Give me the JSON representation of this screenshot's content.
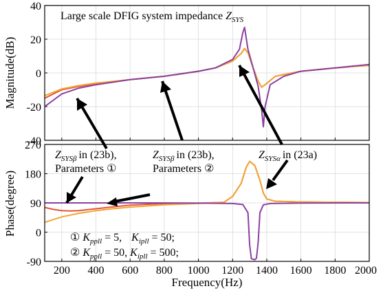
{
  "figure": {
    "title_prefix": "Large scale DFIG system impedance ",
    "title_symbol": "Z",
    "title_subscript": "SYS"
  },
  "chart_data": [
    {
      "type": "line",
      "panel": "magnitude",
      "title": "Large scale DFIG system impedance Z_SYS",
      "xlabel": "",
      "ylabel": "Magnitude(dB)",
      "xlim": [
        100,
        2000
      ],
      "ylim": [
        -40,
        40
      ],
      "yticks": [
        -40,
        -20,
        0,
        20,
        40
      ],
      "grid": true,
      "series": [
        {
          "color": "#e4533a",
          "x": [
            100,
            200,
            300,
            400,
            600,
            800,
            1000,
            1100,
            1200,
            1250,
            1270,
            1290,
            1320,
            1350,
            1370,
            1390,
            1450,
            1600,
            1800,
            2000
          ],
          "y": [
            -15,
            -10,
            -8,
            -6.5,
            -4,
            -2,
            1,
            3,
            7,
            11.5,
            14.5,
            12,
            3,
            -5,
            -8.5,
            -7,
            -2,
            1,
            3,
            4.5
          ]
        },
        {
          "color": "#f2a531",
          "x": [
            100,
            200,
            300,
            400,
            600,
            800,
            1000,
            1100,
            1200,
            1250,
            1270,
            1290,
            1320,
            1350,
            1370,
            1390,
            1450,
            1600,
            1800,
            2000
          ],
          "y": [
            -13.5,
            -9.5,
            -7.5,
            -6,
            -4,
            -2,
            1,
            3,
            7,
            11.5,
            14.5,
            12,
            3,
            -5,
            -8.5,
            -7,
            -2,
            1,
            3,
            4.5
          ]
        },
        {
          "color": "#8b3fa0",
          "x": [
            100,
            200,
            300,
            400,
            600,
            800,
            1000,
            1100,
            1200,
            1240,
            1260,
            1270,
            1290,
            1320,
            1350,
            1370,
            1380,
            1390,
            1420,
            1500,
            1600,
            1800,
            2000
          ],
          "y": [
            -20,
            -12.5,
            -9,
            -7,
            -4,
            -2,
            1,
            3,
            8,
            14,
            24,
            27,
            14,
            3,
            -8,
            -22,
            -32,
            -20,
            -7,
            -2,
            1,
            3,
            5
          ]
        }
      ]
    },
    {
      "type": "line",
      "panel": "phase",
      "title": "",
      "xlabel": "Frequency(Hz)",
      "ylabel": "Phase(degree)",
      "xlim": [
        100,
        2000
      ],
      "ylim": [
        -90,
        270
      ],
      "yticks": [
        -90,
        0,
        90,
        180,
        270
      ],
      "xticks": [
        200,
        400,
        600,
        800,
        1000,
        1200,
        1400,
        1600,
        1800,
        2000
      ],
      "grid": true,
      "series": [
        {
          "color": "#e4533a",
          "x": [
            100,
            150,
            200,
            250,
            300,
            400,
            500,
            600,
            800,
            1000,
            1150,
            1200,
            1250,
            1280,
            1300,
            1330,
            1360,
            1380,
            1400,
            1450,
            1600,
            1800,
            2000
          ],
          "y": [
            76,
            70,
            66,
            65,
            66,
            72,
            78,
            83,
            88,
            89,
            92,
            110,
            150,
            200,
            218,
            205,
            160,
            120,
            102,
            95,
            93,
            92,
            91
          ]
        },
        {
          "color": "#f2a531",
          "x": [
            100,
            200,
            300,
            400,
            500,
            600,
            800,
            1000,
            1150,
            1200,
            1250,
            1280,
            1300,
            1330,
            1360,
            1380,
            1400,
            1450,
            1600,
            1800,
            2000
          ],
          "y": [
            30,
            47,
            58,
            66,
            72,
            77,
            84,
            88,
            92,
            110,
            150,
            200,
            218,
            205,
            160,
            120,
            102,
            95,
            93,
            92,
            91
          ]
        },
        {
          "color": "#8b3fa0",
          "x": [
            100,
            300,
            600,
            1000,
            1200,
            1260,
            1290,
            1300,
            1310,
            1330,
            1340,
            1350,
            1360,
            1380,
            1420,
            1600,
            2000
          ],
          "y": [
            90,
            90,
            90,
            89.5,
            88,
            85,
            60,
            -40,
            -82,
            -85,
            -80,
            -30,
            60,
            84,
            88,
            89.5,
            90
          ]
        }
      ]
    }
  ],
  "annotations": [
    {
      "symbol": "Z",
      "subscript": "SYSβ",
      "ref": "in (23b),",
      "second_line": "Parameters ①"
    },
    {
      "symbol": "Z",
      "subscript": "SYSβ",
      "ref": "in (23b),",
      "second_line": "Parameters ②"
    },
    {
      "symbol": "Z",
      "subscript": "SYSα",
      "ref": "in (23a)",
      "second_line": ""
    }
  ],
  "parameters": [
    {
      "marker": "①",
      "k1": "K",
      "k1_sub": "ppll",
      "k1_val": " = 5,",
      "k2": "K",
      "k2_sub": "ipll",
      "k2_val": " = 50;"
    },
    {
      "marker": "②",
      "k1": "K",
      "k1_sub": "ppll",
      "k1_val": " = 50,",
      "k2": "K",
      "k2_sub": "ipll",
      "k2_val": " = 500;"
    }
  ]
}
